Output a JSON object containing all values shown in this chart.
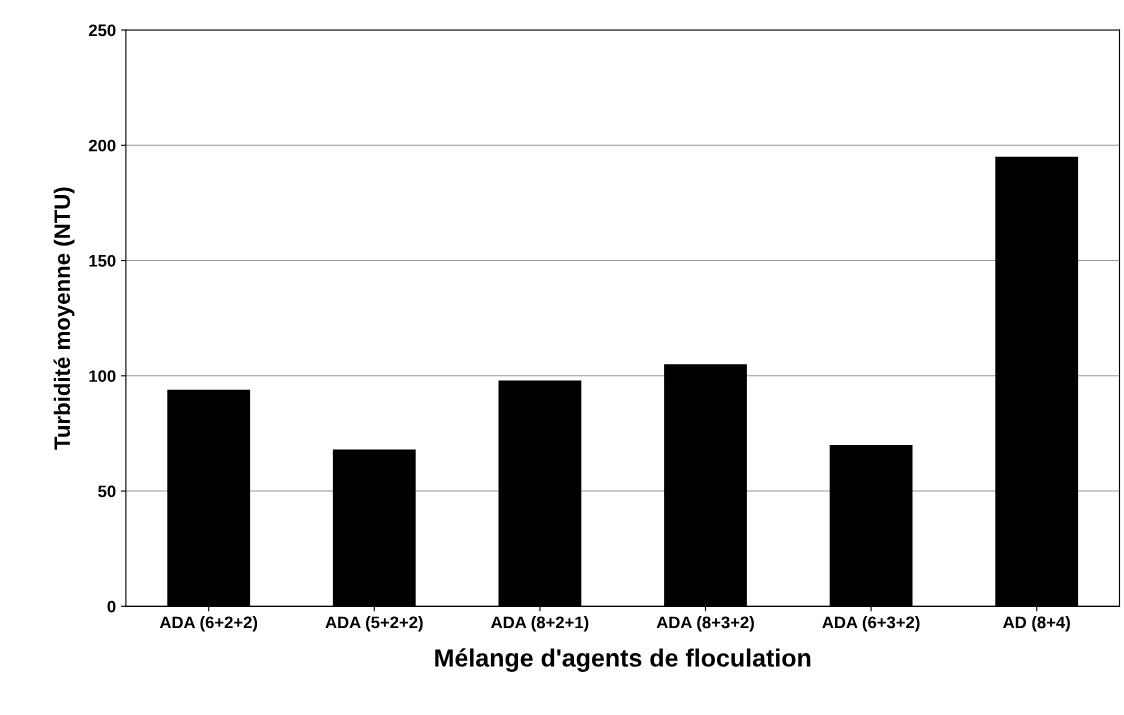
{
  "chart_data": {
    "type": "bar",
    "xlabel": "Mélange d'agents de floculation",
    "ylabel": "Turbidité moyenne (NTU)",
    "categories": [
      "ADA (6+2+2)",
      "ADA (5+2+2)",
      "ADA (8+2+1)",
      "ADA (8+3+2)",
      "ADA (6+3+2)",
      "AD (8+4)"
    ],
    "values": [
      94,
      68,
      98,
      105,
      70,
      195
    ],
    "color": "#000000",
    "ylim": [
      0,
      250
    ],
    "yticks": [
      0,
      50,
      100,
      150,
      200,
      250
    ],
    "grid": "y"
  }
}
